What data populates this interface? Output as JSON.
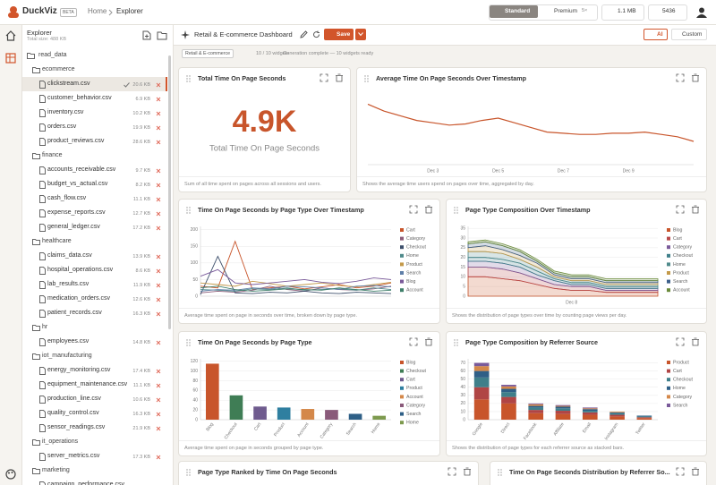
{
  "topbar": {
    "logo": "DuckViz",
    "badge": "BETA",
    "breadcrumb": [
      "Home",
      "Explorer"
    ],
    "plans": [
      "Standard",
      "Premium"
    ],
    "premium_badge": "5×",
    "storage": "1.1 MB",
    "credits": "5436"
  },
  "sidebar": {
    "title": "Explorer",
    "subtitle": "Total size: 488 KB",
    "tree": {
      "root": "read_data",
      "folders": [
        {
          "name": "ecommerce",
          "files": [
            {
              "name": "clickstream.csv",
              "size": "20.6 KB",
              "selected": true
            },
            {
              "name": "customer_behavior.csv",
              "size": "6.9 KB"
            },
            {
              "name": "inventory.csv",
              "size": "10.2 KB"
            },
            {
              "name": "orders.csv",
              "size": "19.9 KB"
            },
            {
              "name": "product_reviews.csv",
              "size": "28.6 KB"
            }
          ]
        },
        {
          "name": "finance",
          "files": [
            {
              "name": "accounts_receivable.csv",
              "size": "9.7 KB"
            },
            {
              "name": "budget_vs_actual.csv",
              "size": "8.2 KB"
            },
            {
              "name": "cash_flow.csv",
              "size": "11.1 KB"
            },
            {
              "name": "expense_reports.csv",
              "size": "12.7 KB"
            },
            {
              "name": "general_ledger.csv",
              "size": "17.2 KB"
            }
          ]
        },
        {
          "name": "healthcare",
          "files": [
            {
              "name": "claims_data.csv",
              "size": "13.9 KB"
            },
            {
              "name": "hospital_operations.csv",
              "size": "8.6 KB"
            },
            {
              "name": "lab_results.csv",
              "size": "11.9 KB"
            },
            {
              "name": "medication_orders.csv",
              "size": "12.6 KB"
            },
            {
              "name": "patient_records.csv",
              "size": "16.3 KB"
            }
          ]
        },
        {
          "name": "hr",
          "files": [
            {
              "name": "employees.csv",
              "size": "14.8 KB"
            }
          ]
        },
        {
          "name": "iot_manufacturing",
          "files": [
            {
              "name": "energy_monitoring.csv",
              "size": "17.4 KB"
            },
            {
              "name": "equipment_maintenance.csv",
              "size": "11.1 KB"
            },
            {
              "name": "production_line.csv",
              "size": "10.6 KB"
            },
            {
              "name": "quality_control.csv",
              "size": "16.3 KB"
            },
            {
              "name": "sensor_readings.csv",
              "size": "21.9 KB"
            }
          ]
        },
        {
          "name": "it_operations",
          "files": [
            {
              "name": "server_metrics.csv",
              "size": "17.3 KB"
            }
          ]
        },
        {
          "name": "marketing",
          "files": [
            {
              "name": "campaign_performance.csv",
              "size": ""
            }
          ]
        }
      ]
    }
  },
  "toolbar": {
    "title": "Retail & E-commerce Dashboard",
    "save": "Save",
    "ai": "AI",
    "custom": "Custom",
    "tag": "Retail & E-commerce",
    "count": "10 / 10 widgets",
    "status": "Generation complete — 10 widgets ready"
  },
  "widgets": [
    {
      "title": "Total Time On Page Seconds",
      "description": "Sum of all time spent on pages across all sessions and users.",
      "chart": {
        "type": "kpi",
        "value": "4.9K",
        "label": "Total Time On Page Seconds",
        "color": "#c8552b"
      }
    },
    {
      "title": "Average Time On Page Seconds Over Timestamp",
      "description": "Shows the average time users spend on pages over time, aggregated by day.",
      "chart": {
        "type": "line",
        "x": [
          null,
          null,
          null,
          null,
          "Dec 3",
          null,
          null,
          null,
          "Dec 5",
          null,
          null,
          null,
          "Dec 7",
          null,
          null,
          null,
          "Dec 9",
          null,
          null,
          null,
          null
        ],
        "series": [
          {
            "color": "#c8552b",
            "values": [
              36,
              33,
              31,
              29,
              28,
              27,
              27.5,
              29,
              30,
              28,
              26,
              24,
              23.5,
              23,
              23,
              23.5,
              23.5,
              24,
              23,
              22,
              20
            ]
          }
        ],
        "ylim": [
          10,
          40
        ]
      }
    },
    {
      "title": "Time On Page Seconds by Page Type Over Timestamp",
      "description": "Average time spent on page in seconds over time, broken down by page type.",
      "chart": {
        "type": "line",
        "legend": "right",
        "ylim": [
          0,
          210
        ],
        "yticks": [
          0,
          50,
          100,
          150,
          200
        ],
        "x": [
          null,
          null,
          null,
          null,
          null,
          null,
          null,
          null,
          null,
          null,
          null,
          null
        ],
        "series": [
          {
            "name": "Cart",
            "color": "#c8552b",
            "values": [
              30,
              25,
              165,
              20,
              25,
              30,
              22,
              28,
              35,
              25,
              30,
              40
            ]
          },
          {
            "name": "Category",
            "color": "#8c5d7a",
            "values": [
              10,
              15,
              12,
              18,
              30,
              20,
              15,
              25,
              20,
              18,
              22,
              30
            ]
          },
          {
            "name": "Checkout",
            "color": "#3d4f6b",
            "values": [
              5,
              120,
              10,
              8,
              12,
              10,
              15,
              10,
              8,
              12,
              10,
              8
            ]
          },
          {
            "name": "Home",
            "color": "#4f8a8b",
            "values": [
              20,
              18,
              15,
              22,
              20,
              25,
              18,
              20,
              22,
              18,
              25,
              20
            ]
          },
          {
            "name": "Product",
            "color": "#c49a4a",
            "values": [
              40,
              35,
              30,
              45,
              38,
              30,
              35,
              40,
              32,
              28,
              35,
              42
            ]
          },
          {
            "name": "Search",
            "color": "#5f7fa8",
            "values": [
              15,
              20,
              18,
              25,
              22,
              30,
              28,
              25,
              20,
              30,
              32,
              28
            ]
          },
          {
            "name": "Blog",
            "color": "#7a5a9a",
            "values": [
              60,
              80,
              40,
              35,
              40,
              45,
              50,
              42,
              38,
              45,
              55,
              50
            ]
          },
          {
            "name": "Account",
            "color": "#3f7f6a",
            "values": [
              25,
              30,
              20,
              15,
              18,
              22,
              20,
              18,
              25,
              20,
              15,
              18
            ]
          }
        ]
      }
    },
    {
      "title": "Page Type Composition Over Timestamp",
      "description": "Shows the distribution of page types over time by counting page views per day.",
      "chart": {
        "type": "area",
        "legend": "right",
        "ylim": [
          0,
          36
        ],
        "yticks": [
          0,
          5,
          10,
          15,
          20,
          25,
          30,
          35
        ],
        "x": [
          null,
          null,
          null,
          null,
          null,
          null,
          "Dec 8",
          null,
          null,
          null,
          null,
          null
        ],
        "series": [
          {
            "name": "Blog",
            "color": "#c8552b",
            "values": [
              10,
              10,
              9,
              8,
              6,
              4,
              3,
              3,
              2,
              2,
              2,
              2
            ]
          },
          {
            "name": "Cart",
            "color": "#b8484a",
            "values": [
              5,
              5,
              5,
              4,
              3,
              2,
              2,
              2,
              1,
              1,
              1,
              1
            ]
          },
          {
            "name": "Category",
            "color": "#7a5a9a",
            "values": [
              3,
              3,
              3,
              3,
              2,
              2,
              1,
              1,
              1,
              1,
              1,
              1
            ]
          },
          {
            "name": "Checkout",
            "color": "#3f7f8a",
            "values": [
              2,
              2,
              2,
              2,
              2,
              1,
              1,
              1,
              1,
              1,
              1,
              1
            ]
          },
          {
            "name": "Home",
            "color": "#4f8a8b",
            "values": [
              3,
              3,
              3,
              2,
              2,
              1,
              1,
              1,
              1,
              1,
              1,
              1
            ]
          },
          {
            "name": "Product",
            "color": "#c49a4a",
            "values": [
              2,
              3,
              2,
              2,
              2,
              1,
              1,
              1,
              1,
              1,
              1,
              1
            ]
          },
          {
            "name": "Search",
            "color": "#3d5f8a",
            "values": [
              2,
              2,
              2,
              2,
              1,
              1,
              1,
              1,
              1,
              1,
              1,
              1
            ]
          },
          {
            "name": "Account",
            "color": "#6a8a3a",
            "values": [
              1,
              1,
              1,
              1,
              1,
              1,
              1,
              1,
              1,
              1,
              1,
              1
            ]
          }
        ]
      }
    },
    {
      "title": "Time On Page Seconds by Page Type",
      "description": "Average time spent on page in seconds grouped by page type.",
      "chart": {
        "type": "bar",
        "legend": "right",
        "ylim": [
          0,
          125
        ],
        "yticks": [
          0,
          20,
          40,
          60,
          80,
          100,
          120
        ],
        "categories": [
          "Blog",
          "Checkout",
          "Cart",
          "Product",
          "Account",
          "Category",
          "Search",
          "Home"
        ],
        "values": [
          115,
          50,
          27,
          25,
          22,
          20,
          12,
          8
        ],
        "colors": [
          "#c8552b",
          "#3f7d55",
          "#6f5b8e",
          "#2f7fa0",
          "#d4884a",
          "#8a5a7a",
          "#2e5f86",
          "#7d9a4e"
        ]
      }
    },
    {
      "title": "Page Type Composition by Referrer Source",
      "description": "Shows the distribution of page types for each referrer source as stacked bars.",
      "chart": {
        "type": "bar",
        "legend": "right",
        "ylim": [
          0,
          75
        ],
        "yticks": [
          0,
          10,
          20,
          30,
          40,
          50,
          60,
          70
        ],
        "categories": [
          "Google",
          "Direct",
          "Facebook",
          "Affiliate",
          "Email",
          "Instagram",
          "Twitter"
        ],
        "series": [
          {
            "name": "Product",
            "color": "#c8552b",
            "values": [
              25,
              20,
              8,
              7,
              6,
              4,
              2
            ]
          },
          {
            "name": "Cart",
            "color": "#b04545",
            "values": [
              15,
              8,
              4,
              4,
              3,
              2,
              1
            ]
          },
          {
            "name": "Checkout",
            "color": "#3f7f8a",
            "values": [
              12,
              6,
              3,
              3,
              2,
              2,
              1
            ]
          },
          {
            "name": "Home",
            "color": "#2f5f86",
            "values": [
              8,
              4,
              2,
              2,
              2,
              1,
              1
            ]
          },
          {
            "name": "Category",
            "color": "#d4884a",
            "values": [
              6,
              3,
              2,
              1,
              1,
              1,
              0
            ]
          },
          {
            "name": "Search",
            "color": "#7a5a9a",
            "values": [
              4,
              2,
              1,
              1,
              1,
              0,
              0
            ]
          }
        ]
      }
    },
    {
      "title": "Page Type Ranked by Time On Page Seconds"
    },
    {
      "title": "Time On Page Seconds Distribution by Referrer So..."
    }
  ]
}
